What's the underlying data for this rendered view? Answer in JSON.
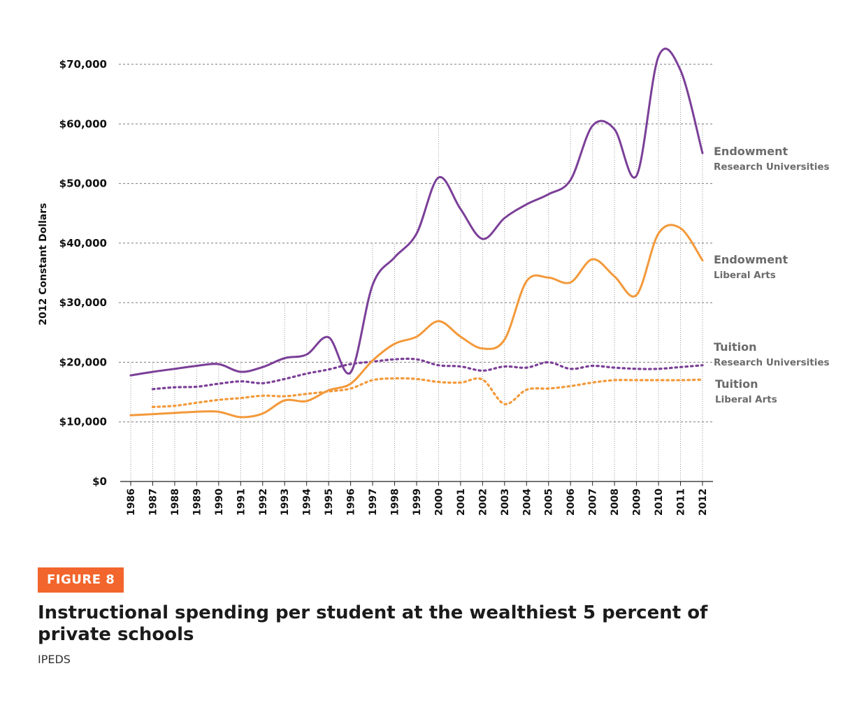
{
  "figure": {
    "badge": "FIGURE 8",
    "title": "Instructional spending per student at the wealthiest 5 percent of private schools",
    "source": "IPEDS"
  },
  "chart_data": {
    "type": "line",
    "ylabel": "2012 Constant Dollars",
    "xlabel": "",
    "ylim": [
      0,
      70000
    ],
    "yticks": [
      0,
      10000,
      20000,
      30000,
      40000,
      50000,
      60000,
      70000
    ],
    "ytick_labels": [
      "$0",
      "$10,000",
      "$20,000",
      "$30,000",
      "$40,000",
      "$50,000",
      "$60,000",
      "$70,000"
    ],
    "x": [
      "1986",
      "1987",
      "1988",
      "1989",
      "1990",
      "1991",
      "1992",
      "1993",
      "1994",
      "1995",
      "1996",
      "1997",
      "1998",
      "1999",
      "2000",
      "2001",
      "2002",
      "2003",
      "2004",
      "2005",
      "2006",
      "2007",
      "2008",
      "2009",
      "2010",
      "2011",
      "2012"
    ],
    "grid": "horizontal dashed, vertical dotted",
    "legend": "right-side inline labels",
    "series": [
      {
        "name": "Endowment",
        "sub": "Research Universities",
        "color": "#7b3f98",
        "style": "solid",
        "values": [
          17800,
          18400,
          18900,
          19400,
          19700,
          18400,
          19200,
          20700,
          21300,
          24200,
          18300,
          33000,
          37600,
          41600,
          51000,
          45700,
          40700,
          44200,
          46500,
          48200,
          50600,
          59700,
          59100,
          51300,
          71300,
          69000,
          55100
        ]
      },
      {
        "name": "Endowment",
        "sub": "Liberal Arts",
        "color": "#f3993a",
        "style": "solid",
        "values": [
          11100,
          11300,
          11500,
          11700,
          11700,
          10800,
          11400,
          13600,
          13500,
          15300,
          16400,
          20300,
          23100,
          24300,
          26900,
          24300,
          22300,
          23800,
          33600,
          34200,
          33400,
          37300,
          34400,
          31300,
          41600,
          42500,
          37100
        ]
      },
      {
        "name": "Tuition",
        "sub": "Research Universities",
        "color": "#7b3f98",
        "style": "dotted",
        "values": [
          null,
          15500,
          15800,
          15900,
          16400,
          16800,
          16500,
          17200,
          18100,
          18800,
          19700,
          20100,
          20500,
          20500,
          19500,
          19300,
          18600,
          19300,
          19100,
          20000,
          18900,
          19400,
          19100,
          18900,
          18900,
          19200,
          19500
        ]
      },
      {
        "name": "Tuition",
        "sub": "Liberal Arts",
        "color": "#f3993a",
        "style": "dotted",
        "values": [
          null,
          12500,
          12700,
          13200,
          13700,
          14000,
          14400,
          14300,
          14700,
          15100,
          15600,
          17000,
          17300,
          17200,
          16700,
          16600,
          17100,
          13000,
          15400,
          15600,
          16000,
          16600,
          17000,
          17000,
          17000,
          17000,
          17100
        ]
      }
    ]
  }
}
